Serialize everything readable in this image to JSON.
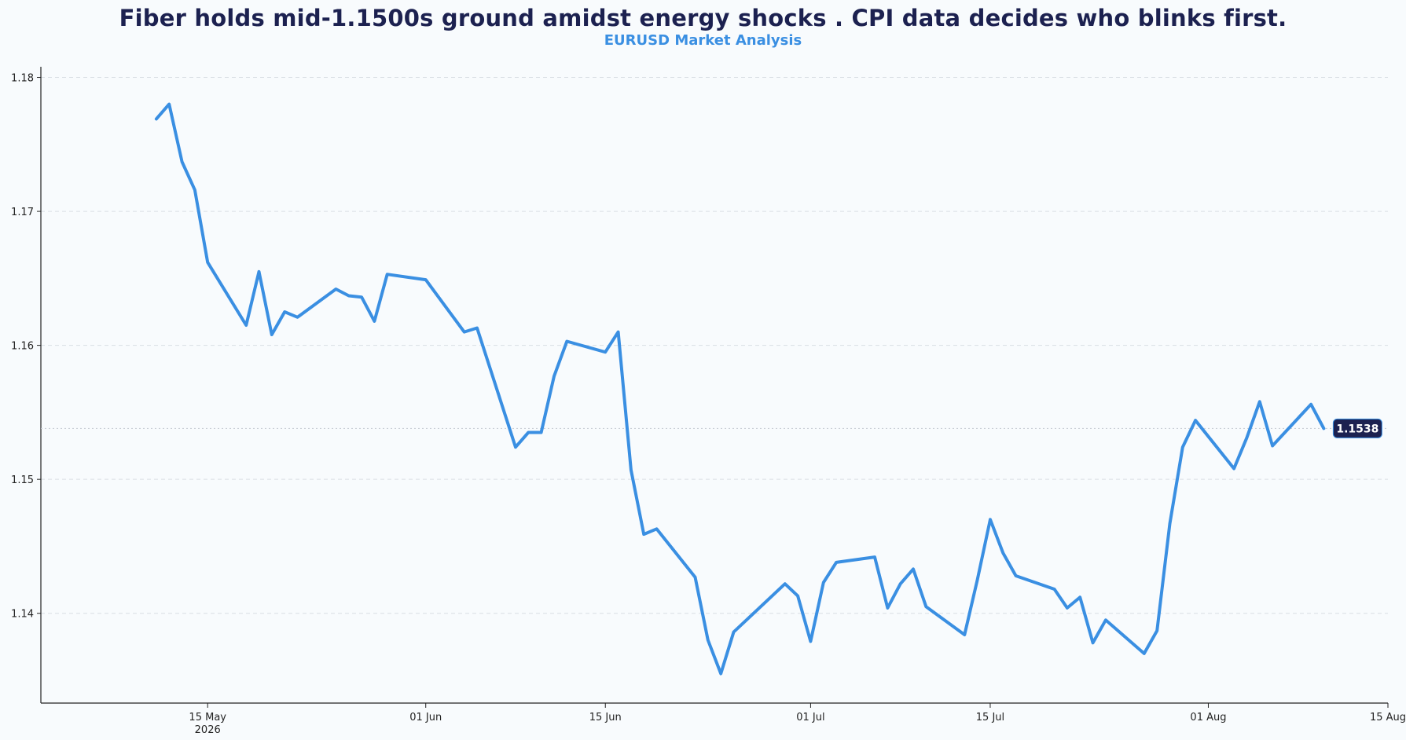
{
  "chart_title": "Fiber holds mid-1.1500s ground amidst energy shocks . CPI data decides who blinks first.",
  "chart_subtitle": "EURUSD Market Analysis",
  "chart_data": {
    "type": "line",
    "title": "Fiber holds mid-1.1500s ground amidst energy shocks . CPI data decides who blinks first.",
    "subtitle": "EURUSD Market Analysis",
    "xlabel": "",
    "ylabel": "",
    "xlim": [
      "2026-05-02",
      "2026-08-15"
    ],
    "ylim": [
      1.1333,
      1.1805
    ],
    "y_ticks": [
      1.14,
      1.15,
      1.16,
      1.17,
      1.18
    ],
    "y_tick_labels": [
      "1.14",
      "1.15",
      "1.16",
      "1.17",
      "1.18"
    ],
    "x_ticks": [
      {
        "date": "2026-05-15",
        "label": "15 May",
        "sublabel": "2026"
      },
      {
        "date": "2026-06-01",
        "label": "01 Jun",
        "sublabel": ""
      },
      {
        "date": "2026-06-15",
        "label": "15 Jun",
        "sublabel": ""
      },
      {
        "date": "2026-07-01",
        "label": "01 Jul",
        "sublabel": ""
      },
      {
        "date": "2026-07-15",
        "label": "15 Jul",
        "sublabel": ""
      },
      {
        "date": "2026-08-01",
        "label": "01 Aug",
        "sublabel": ""
      },
      {
        "date": "2026-08-15",
        "label": "15 Aug",
        "sublabel": ""
      }
    ],
    "grid": "horizontal-dashed",
    "last_value_label": "1.1538",
    "last_value": 1.1538,
    "line_color": "#3a8fe2",
    "badge_color": "#1c2150",
    "series": [
      {
        "x": [
          "2026-05-11",
          "2026-05-12",
          "2026-05-13",
          "2026-05-14",
          "2026-05-15",
          "2026-05-18",
          "2026-05-19",
          "2026-05-20",
          "2026-05-21",
          "2026-05-22",
          "2026-05-25",
          "2026-05-26",
          "2026-05-27",
          "2026-05-28",
          "2026-05-29",
          "2026-06-01",
          "2026-06-04",
          "2026-06-05",
          "2026-06-08",
          "2026-06-09",
          "2026-06-10",
          "2026-06-11",
          "2026-06-12",
          "2026-06-15",
          "2026-06-16",
          "2026-06-17",
          "2026-06-18",
          "2026-06-19",
          "2026-06-22",
          "2026-06-23",
          "2026-06-24",
          "2026-06-25",
          "2026-06-29",
          "2026-06-30",
          "2026-07-01",
          "2026-07-02",
          "2026-07-03",
          "2026-07-06",
          "2026-07-07",
          "2026-07-08",
          "2026-07-09",
          "2026-07-10",
          "2026-07-13",
          "2026-07-14",
          "2026-07-15",
          "2026-07-16",
          "2026-07-17",
          "2026-07-20",
          "2026-07-21",
          "2026-07-22",
          "2026-07-23",
          "2026-07-24",
          "2026-07-27",
          "2026-07-28",
          "2026-07-29",
          "2026-07-30",
          "2026-07-31",
          "2026-08-03",
          "2026-08-04",
          "2026-08-05",
          "2026-08-06",
          "2026-08-09",
          "2026-08-10"
        ],
        "y": [
          1.1769,
          1.178,
          1.1737,
          1.1716,
          1.1662,
          1.1615,
          1.1655,
          1.1608,
          1.1625,
          1.1621,
          1.1642,
          1.1637,
          1.1636,
          1.1618,
          1.1653,
          1.1649,
          1.161,
          1.1613,
          1.1524,
          1.1535,
          1.1535,
          1.1577,
          1.1603,
          1.1595,
          1.161,
          1.1507,
          1.1459,
          1.1463,
          1.1427,
          1.138,
          1.1355,
          1.1386,
          1.1422,
          1.1413,
          1.1379,
          1.1423,
          1.1438,
          1.1442,
          1.1404,
          1.1422,
          1.1433,
          1.1405,
          1.1384,
          1.1425,
          1.147,
          1.1445,
          1.1428,
          1.1418,
          1.1404,
          1.1412,
          1.1378,
          1.1395,
          1.137,
          1.1387,
          1.1467,
          1.1524,
          1.1544,
          1.1508,
          1.1531,
          1.1558,
          1.1525,
          1.1556,
          1.1538
        ]
      }
    ]
  }
}
